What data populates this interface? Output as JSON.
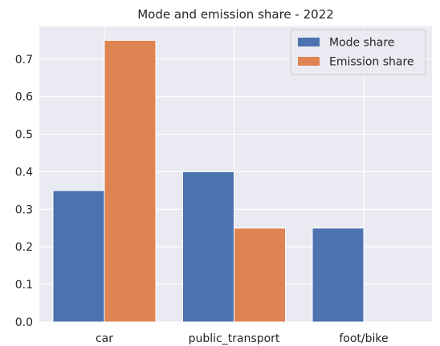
{
  "chart_data": {
    "type": "bar",
    "title": "Mode and emission share - 2022",
    "xlabel": "",
    "ylabel": "",
    "categories": [
      "car",
      "public_transport",
      "foot/bike"
    ],
    "series": [
      {
        "name": "Mode share",
        "values": [
          0.35,
          0.4,
          0.25
        ],
        "color": "#4c72b0"
      },
      {
        "name": "Emission share",
        "values": [
          0.75,
          0.25,
          0.0
        ],
        "color": "#dd8452"
      }
    ],
    "ylim": [
      0,
      0.787
    ],
    "yticks": [
      "0.0",
      "0.1",
      "0.2",
      "0.3",
      "0.4",
      "0.5",
      "0.6",
      "0.7"
    ],
    "grid": true,
    "legend_position": "top-right",
    "background_color": "#eaeaf2",
    "grid_color": "#ffffff"
  }
}
